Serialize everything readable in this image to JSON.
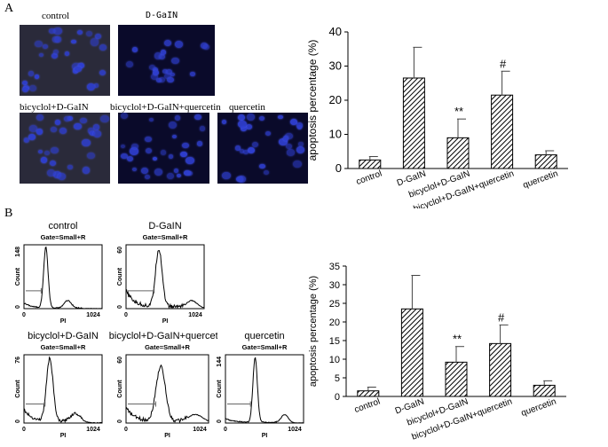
{
  "panel_a": {
    "letter": "A",
    "micrographs": [
      {
        "label": "control"
      },
      {
        "label": "D-GaIN"
      },
      {
        "label": "bicyclol+D-GaIN"
      },
      {
        "label": "bicyclol+D-GaIN+quercetin"
      },
      {
        "label": "quercetin"
      }
    ]
  },
  "panel_b": {
    "letter": "B",
    "histograms": [
      {
        "title": "control",
        "gate": "Gate=Small+R",
        "ymax": "148",
        "ylabel": "Count",
        "xlabel": "PI",
        "x0": "0",
        "x1": "1024",
        "y0": "0"
      },
      {
        "title": "D-GaIN",
        "gate": "Gate=Small+R",
        "ymax": "60",
        "ylabel": "Count",
        "xlabel": "PI",
        "x0": "0",
        "x1": "1024",
        "y0": "0"
      },
      {
        "title": "bicyclol+D-GaIN",
        "gate": "Gate=Small+R",
        "ymax": "76",
        "ylabel": "Count",
        "xlabel": "PI",
        "x0": "0",
        "x1": "1024",
        "y0": "0"
      },
      {
        "title": "bicyclol+D-GaIN+quercetin",
        "gate": "Gate=Small+R",
        "ymax": "60",
        "ylabel": "Count",
        "xlabel": "PI",
        "x0": "0",
        "x1": "1024",
        "y0": "0"
      },
      {
        "title": "quercetin",
        "gate": "Gate=Small+R",
        "ymax": "144",
        "ylabel": "Count",
        "xlabel": "PI",
        "x0": "0",
        "x1": "1024",
        "y0": "0"
      }
    ]
  },
  "chart_data": [
    {
      "type": "bar",
      "ylabel": "apoptosis percentage (%)",
      "ylim": [
        0,
        40
      ],
      "yticks": [
        "0",
        "10",
        "20",
        "30",
        "40"
      ],
      "categories": [
        "control",
        "D-GaIN",
        "bicyclol+D-GaIN",
        "bicyclol+D-GaIN+quercetin",
        "quercetin"
      ],
      "values": [
        2.5,
        26.5,
        9,
        21.5,
        4
      ],
      "errors": [
        1,
        9,
        5.5,
        7,
        1.2
      ],
      "annotations": [
        "",
        "",
        "**",
        "#",
        ""
      ],
      "bar_fill": "hatched",
      "grid": false
    },
    {
      "type": "bar",
      "ylabel": "apoptosis percentage (%)",
      "ylim": [
        0,
        35
      ],
      "yticks": [
        "0",
        "5",
        "10",
        "15",
        "20",
        "25",
        "30",
        "35"
      ],
      "categories": [
        "control",
        "D-GaIN",
        "bicyclol+D-GaIN",
        "bicyclol+D-GaIN+quercetin",
        "quercetin"
      ],
      "values": [
        1.5,
        23.5,
        9.2,
        14.2,
        3
      ],
      "errors": [
        1,
        9,
        4.2,
        5,
        1.2
      ],
      "annotations": [
        "",
        "",
        "**",
        "#",
        ""
      ],
      "bar_fill": "hatched",
      "grid": false
    }
  ]
}
